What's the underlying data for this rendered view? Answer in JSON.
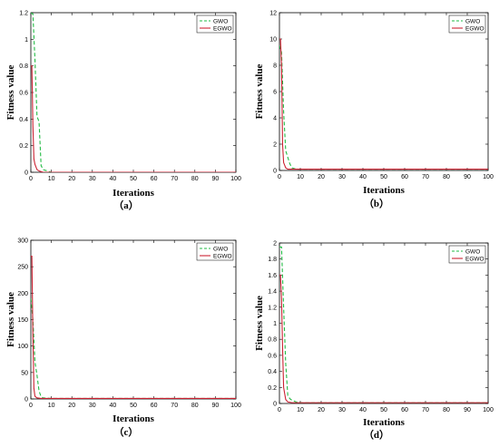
{
  "chart_data": [
    {
      "type": "line",
      "panel_label": "（a）",
      "xlabel": "Iterations",
      "ylabel": "Fitness value",
      "xlim": [
        0,
        100
      ],
      "ylim": [
        0,
        1.2
      ],
      "xticks": [
        0,
        10,
        20,
        30,
        40,
        50,
        60,
        70,
        80,
        90,
        100
      ],
      "yticks": [
        0,
        0.2,
        0.4,
        0.6,
        0.8,
        1,
        1.2
      ],
      "legend_position": "top-right",
      "series": [
        {
          "name": "GWO",
          "color": "#22bb44",
          "style": "dashed",
          "x": [
            0,
            1,
            2,
            3,
            4,
            5,
            6,
            8,
            10,
            100
          ],
          "y": [
            1.2,
            1.19,
            0.85,
            0.42,
            0.38,
            0.05,
            0.02,
            0.01,
            0.0,
            0.0
          ]
        },
        {
          "name": "EGWO",
          "color": "#cc2233",
          "style": "solid",
          "x": [
            0,
            0.5,
            1,
            1.5,
            2,
            3,
            4,
            6,
            100
          ],
          "y": [
            0.8,
            0.8,
            0.35,
            0.1,
            0.06,
            0.02,
            0.01,
            0.0,
            0.0
          ]
        }
      ]
    },
    {
      "type": "line",
      "panel_label": "（b）",
      "xlabel": "Iterations",
      "ylabel": "Fitness value",
      "xlim": [
        0,
        100
      ],
      "ylim": [
        0,
        12
      ],
      "xticks": [
        0,
        10,
        20,
        30,
        40,
        50,
        60,
        70,
        80,
        90,
        100
      ],
      "yticks": [
        0,
        2,
        4,
        6,
        8,
        10,
        12
      ],
      "legend_position": "top-right",
      "series": [
        {
          "name": "GWO",
          "color": "#22bb44",
          "style": "dashed",
          "x": [
            0,
            1,
            2,
            3,
            4,
            5,
            6,
            8,
            100
          ],
          "y": [
            9.5,
            9.0,
            4.5,
            1.5,
            1.0,
            0.5,
            0.2,
            0.1,
            0.1
          ]
        },
        {
          "name": "EGWO",
          "color": "#cc2233",
          "style": "solid",
          "x": [
            0,
            0.5,
            1,
            1.5,
            2,
            3,
            4,
            6,
            100
          ],
          "y": [
            10.0,
            10.0,
            8.0,
            2.0,
            0.6,
            0.2,
            0.1,
            0.1,
            0.1
          ]
        }
      ]
    },
    {
      "type": "line",
      "panel_label": "（c）",
      "xlabel": "Iterations",
      "ylabel": "Fitness value",
      "xlim": [
        0,
        100
      ],
      "ylim": [
        0,
        300
      ],
      "xticks": [
        0,
        10,
        20,
        30,
        40,
        50,
        60,
        70,
        80,
        90,
        100
      ],
      "yticks": [
        0,
        50,
        100,
        150,
        200,
        250,
        300
      ],
      "legend_position": "top-right",
      "series": [
        {
          "name": "GWO",
          "color": "#22bb44",
          "style": "dashed",
          "x": [
            0,
            1,
            2,
            3,
            4,
            5,
            6,
            10,
            100
          ],
          "y": [
            190,
            150,
            70,
            45,
            15,
            4,
            2,
            1,
            1
          ]
        },
        {
          "name": "EGWO",
          "color": "#cc2233",
          "style": "solid",
          "x": [
            0,
            0.5,
            1,
            1.5,
            2,
            3,
            5,
            100
          ],
          "y": [
            270,
            270,
            120,
            20,
            5,
            2,
            1,
            1
          ]
        }
      ]
    },
    {
      "type": "line",
      "panel_label": "（d）",
      "xlabel": "Iterations",
      "ylabel": "Fitness value",
      "xlim": [
        0,
        100
      ],
      "ylim": [
        0,
        2
      ],
      "xticks": [
        0,
        10,
        20,
        30,
        40,
        50,
        60,
        70,
        80,
        90,
        100
      ],
      "yticks": [
        0,
        0.2,
        0.4,
        0.6,
        0.8,
        1,
        1.2,
        1.4,
        1.6,
        1.8,
        2
      ],
      "legend_position": "top-right",
      "series": [
        {
          "name": "GWO",
          "color": "#22bb44",
          "style": "dashed",
          "x": [
            0,
            1,
            2,
            3,
            4,
            5,
            6,
            8,
            10,
            100
          ],
          "y": [
            1.95,
            1.95,
            1.2,
            0.5,
            0.1,
            0.06,
            0.04,
            0.02,
            0.01,
            0.01
          ]
        },
        {
          "name": "EGWO",
          "color": "#cc2233",
          "style": "solid",
          "x": [
            0,
            0.5,
            1,
            1.5,
            2,
            3,
            4,
            6,
            100
          ],
          "y": [
            1.6,
            1.6,
            1.3,
            0.7,
            0.2,
            0.05,
            0.02,
            0.01,
            0.01
          ]
        }
      ]
    }
  ]
}
